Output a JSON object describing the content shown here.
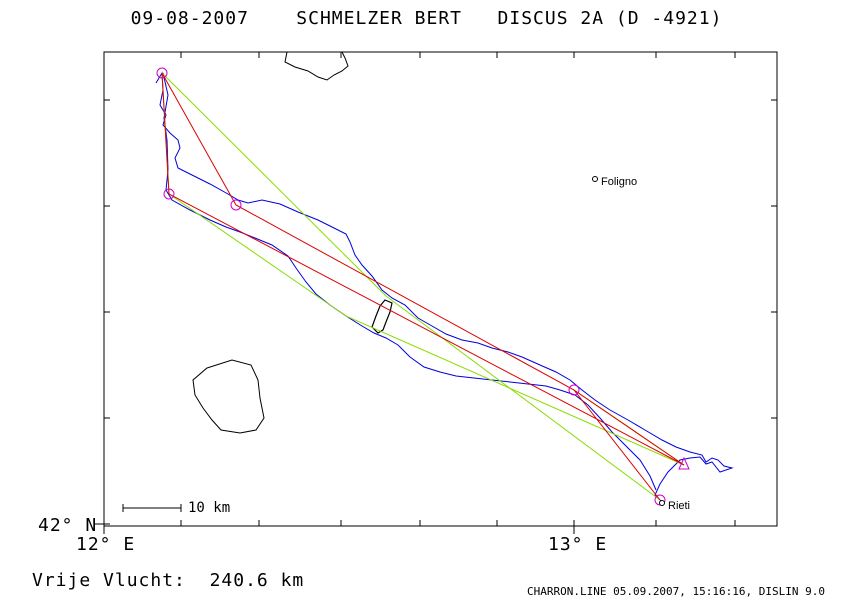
{
  "header": {
    "date": "09-08-2007",
    "pilot": "SCHMELZER BERT",
    "glider": "DISCUS 2A (D -4921)"
  },
  "axes": {
    "y_label": "42° N",
    "x_labels": [
      "12° E",
      "13° E"
    ]
  },
  "places": [
    {
      "name": "Foligno"
    },
    {
      "name": "Rieti"
    }
  ],
  "scale_bar": {
    "label": "10 km"
  },
  "footer": {
    "result_label": "Vrije Vlucht:",
    "result_value": "240.6 km",
    "software": "CHARRON.LINE 05.09.2007, 15:16:16, DISLIN 9.0"
  },
  "colors": {
    "track": "#0000dd",
    "optimized_route": "#dd0000",
    "alternate_route": "#88dd00",
    "turnpoint_marker": "#cc00cc",
    "coastline": "#000000"
  }
}
